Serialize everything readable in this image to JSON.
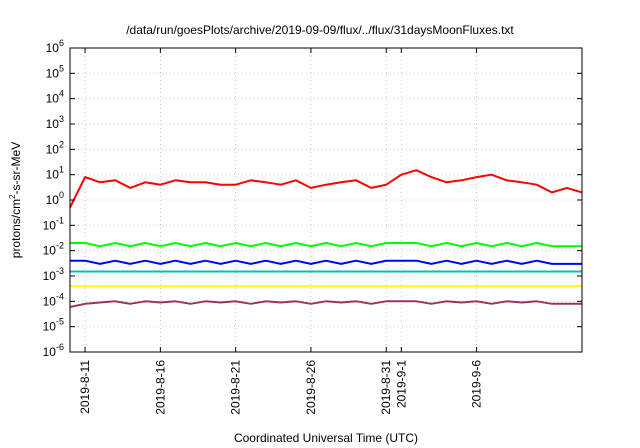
{
  "chart_data": {
    "type": "line",
    "title": "/data/run/goesPlots/archive/2019-09-09/flux/../flux/31daysMoonFluxes.txt",
    "xlabel": "Coordinated Universal Time (UTC)",
    "ylabel": {
      "prefix": "protons/cm",
      "sup": "2",
      "suffix": "-s-sr-MeV"
    },
    "yscale": "log",
    "ylim": [
      1e-06,
      1000000.0
    ],
    "xlim": [
      "2019-08-10",
      "2019-09-13"
    ],
    "y_ticks": [
      {
        "value": 1e-06,
        "base": "10",
        "exp": "-6"
      },
      {
        "value": 1e-05,
        "base": "10",
        "exp": "-5"
      },
      {
        "value": 0.0001,
        "base": "10",
        "exp": "-4"
      },
      {
        "value": 0.001,
        "base": "10",
        "exp": "-3"
      },
      {
        "value": 0.01,
        "base": "10",
        "exp": "-2"
      },
      {
        "value": 0.1,
        "base": "10",
        "exp": "-1"
      },
      {
        "value": 1,
        "base": "10",
        "exp": "0"
      },
      {
        "value": 10,
        "base": "10",
        "exp": "1"
      },
      {
        "value": 100,
        "base": "10",
        "exp": "2"
      },
      {
        "value": 1000,
        "base": "10",
        "exp": "3"
      },
      {
        "value": 10000,
        "base": "10",
        "exp": "4"
      },
      {
        "value": 100000,
        "base": "10",
        "exp": "5"
      },
      {
        "value": 1000000,
        "base": "10",
        "exp": "6"
      }
    ],
    "x_ticks": [
      {
        "date": "2019-08-11",
        "label": "2019-8-11"
      },
      {
        "date": "2019-08-16",
        "label": "2019-8-16"
      },
      {
        "date": "2019-08-21",
        "label": "2019-8-21"
      },
      {
        "date": "2019-08-26",
        "label": "2019-8-26"
      },
      {
        "date": "2019-08-31",
        "label": "2019-8-31"
      },
      {
        "date": "2019-09-01",
        "label": "2019-9-1"
      },
      {
        "date": "2019-09-06",
        "label": "2019-9-6"
      }
    ],
    "grid": true,
    "legend": "none",
    "series": [
      {
        "color": "#ff0000",
        "x": [
          "2019-08-10",
          "2019-08-11",
          "2019-08-12",
          "2019-08-13",
          "2019-08-14",
          "2019-08-15",
          "2019-08-16",
          "2019-08-17",
          "2019-08-18",
          "2019-08-19",
          "2019-08-20",
          "2019-08-21",
          "2019-08-22",
          "2019-08-23",
          "2019-08-24",
          "2019-08-25",
          "2019-08-26",
          "2019-08-27",
          "2019-08-28",
          "2019-08-29",
          "2019-08-30",
          "2019-08-31",
          "2019-09-01",
          "2019-09-02",
          "2019-09-03",
          "2019-09-04",
          "2019-09-05",
          "2019-09-06",
          "2019-09-07",
          "2019-09-08",
          "2019-09-09",
          "2019-09-10",
          "2019-09-11",
          "2019-09-12",
          "2019-09-13"
        ],
        "y": [
          0.5,
          8,
          5,
          6,
          3,
          5,
          4,
          6,
          5,
          5,
          4,
          4,
          6,
          5,
          4,
          6,
          3,
          4,
          5,
          6,
          3,
          4,
          10,
          15,
          8,
          5,
          6,
          8,
          10,
          6,
          5,
          4,
          2,
          3,
          2
        ]
      },
      {
        "color": "#00ff00",
        "x": [
          "2019-08-10",
          "2019-08-11",
          "2019-08-12",
          "2019-08-13",
          "2019-08-14",
          "2019-08-15",
          "2019-08-16",
          "2019-08-17",
          "2019-08-18",
          "2019-08-19",
          "2019-08-20",
          "2019-08-21",
          "2019-08-22",
          "2019-08-23",
          "2019-08-24",
          "2019-08-25",
          "2019-08-26",
          "2019-08-27",
          "2019-08-28",
          "2019-08-29",
          "2019-08-30",
          "2019-08-31",
          "2019-09-01",
          "2019-09-02",
          "2019-09-03",
          "2019-09-04",
          "2019-09-05",
          "2019-09-06",
          "2019-09-07",
          "2019-09-08",
          "2019-09-09",
          "2019-09-10",
          "2019-09-11",
          "2019-09-12",
          "2019-09-13"
        ],
        "y": [
          0.02,
          0.02,
          0.015,
          0.02,
          0.015,
          0.02,
          0.015,
          0.02,
          0.015,
          0.02,
          0.015,
          0.02,
          0.015,
          0.02,
          0.015,
          0.02,
          0.015,
          0.02,
          0.015,
          0.02,
          0.015,
          0.02,
          0.02,
          0.02,
          0.015,
          0.02,
          0.015,
          0.02,
          0.015,
          0.02,
          0.015,
          0.02,
          0.015,
          0.015,
          0.015
        ]
      },
      {
        "color": "#00c0c0",
        "x": [
          "2019-08-10",
          "2019-08-11",
          "2019-08-12",
          "2019-08-13",
          "2019-08-14",
          "2019-08-15",
          "2019-08-16",
          "2019-08-17",
          "2019-08-18",
          "2019-08-19",
          "2019-08-20",
          "2019-08-21",
          "2019-08-22",
          "2019-08-23",
          "2019-08-24",
          "2019-08-25",
          "2019-08-26",
          "2019-08-27",
          "2019-08-28",
          "2019-08-29",
          "2019-08-30",
          "2019-08-31",
          "2019-09-01",
          "2019-09-02",
          "2019-09-03",
          "2019-09-04",
          "2019-09-05",
          "2019-09-06",
          "2019-09-07",
          "2019-09-08",
          "2019-09-09",
          "2019-09-10",
          "2019-09-11",
          "2019-09-12",
          "2019-09-13"
        ],
        "y": [
          0.0015,
          0.0015,
          0.0015,
          0.0015,
          0.0015,
          0.0015,
          0.0015,
          0.0015,
          0.0015,
          0.0015,
          0.0015,
          0.0015,
          0.0015,
          0.0015,
          0.0015,
          0.0015,
          0.0015,
          0.0015,
          0.0015,
          0.0015,
          0.0015,
          0.0015,
          0.0015,
          0.0015,
          0.0015,
          0.0015,
          0.0015,
          0.0015,
          0.0015,
          0.0015,
          0.0015,
          0.0015,
          0.0015,
          0.0015,
          0.0015
        ]
      },
      {
        "color": "#0000ff",
        "x": [
          "2019-08-10",
          "2019-08-11",
          "2019-08-12",
          "2019-08-13",
          "2019-08-14",
          "2019-08-15",
          "2019-08-16",
          "2019-08-17",
          "2019-08-18",
          "2019-08-19",
          "2019-08-20",
          "2019-08-21",
          "2019-08-22",
          "2019-08-23",
          "2019-08-24",
          "2019-08-25",
          "2019-08-26",
          "2019-08-27",
          "2019-08-28",
          "2019-08-29",
          "2019-08-30",
          "2019-08-31",
          "2019-09-01",
          "2019-09-02",
          "2019-09-03",
          "2019-09-04",
          "2019-09-05",
          "2019-09-06",
          "2019-09-07",
          "2019-09-08",
          "2019-09-09",
          "2019-09-10",
          "2019-09-11",
          "2019-09-12",
          "2019-09-13"
        ],
        "y": [
          0.004,
          0.004,
          0.003,
          0.004,
          0.003,
          0.004,
          0.003,
          0.004,
          0.003,
          0.004,
          0.003,
          0.004,
          0.003,
          0.004,
          0.003,
          0.004,
          0.003,
          0.004,
          0.003,
          0.004,
          0.003,
          0.004,
          0.004,
          0.004,
          0.003,
          0.004,
          0.003,
          0.004,
          0.003,
          0.004,
          0.003,
          0.004,
          0.003,
          0.003,
          0.003
        ]
      },
      {
        "color": "#ffff00",
        "x": [
          "2019-08-10",
          "2019-08-11",
          "2019-08-12",
          "2019-08-13",
          "2019-08-14",
          "2019-08-15",
          "2019-08-16",
          "2019-08-17",
          "2019-08-18",
          "2019-08-19",
          "2019-08-20",
          "2019-08-21",
          "2019-08-22",
          "2019-08-23",
          "2019-08-24",
          "2019-08-25",
          "2019-08-26",
          "2019-08-27",
          "2019-08-28",
          "2019-08-29",
          "2019-08-30",
          "2019-08-31",
          "2019-09-01",
          "2019-09-02",
          "2019-09-03",
          "2019-09-04",
          "2019-09-05",
          "2019-09-06",
          "2019-09-07",
          "2019-09-08",
          "2019-09-09",
          "2019-09-10",
          "2019-09-11",
          "2019-09-12",
          "2019-09-13"
        ],
        "y": [
          0.0004,
          0.0004,
          0.0004,
          0.0004,
          0.0004,
          0.0004,
          0.0004,
          0.0004,
          0.0004,
          0.0004,
          0.0004,
          0.0004,
          0.0004,
          0.0004,
          0.0004,
          0.0004,
          0.0004,
          0.0004,
          0.0004,
          0.0004,
          0.0004,
          0.0004,
          0.0004,
          0.0004,
          0.0004,
          0.0004,
          0.0004,
          0.0004,
          0.0004,
          0.0004,
          0.0004,
          0.0004,
          0.0004,
          0.0004,
          0.0004
        ]
      },
      {
        "color": "#993366",
        "x": [
          "2019-08-10",
          "2019-08-11",
          "2019-08-12",
          "2019-08-13",
          "2019-08-14",
          "2019-08-15",
          "2019-08-16",
          "2019-08-17",
          "2019-08-18",
          "2019-08-19",
          "2019-08-20",
          "2019-08-21",
          "2019-08-22",
          "2019-08-23",
          "2019-08-24",
          "2019-08-25",
          "2019-08-26",
          "2019-08-27",
          "2019-08-28",
          "2019-08-29",
          "2019-08-30",
          "2019-08-31",
          "2019-09-01",
          "2019-09-02",
          "2019-09-03",
          "2019-09-04",
          "2019-09-05",
          "2019-09-06",
          "2019-09-07",
          "2019-09-08",
          "2019-09-09",
          "2019-09-10",
          "2019-09-11",
          "2019-09-12",
          "2019-09-13"
        ],
        "y": [
          6e-05,
          8e-05,
          9e-05,
          0.0001,
          8e-05,
          0.0001,
          9e-05,
          0.0001,
          8e-05,
          0.0001,
          9e-05,
          0.0001,
          8e-05,
          0.0001,
          9e-05,
          0.0001,
          8e-05,
          0.0001,
          9e-05,
          0.0001,
          8e-05,
          0.0001,
          0.0001,
          0.0001,
          8e-05,
          0.0001,
          9e-05,
          0.0001,
          8e-05,
          0.0001,
          9e-05,
          0.0001,
          8e-05,
          8e-05,
          8e-05
        ]
      }
    ]
  }
}
